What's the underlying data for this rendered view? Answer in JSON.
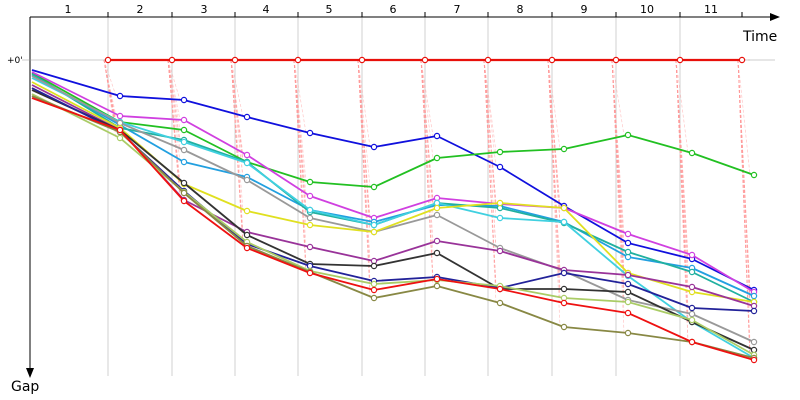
{
  "chart_data": {
    "type": "line",
    "xlabel": "Time",
    "ylabel": "Gap",
    "zero_label": "+0'",
    "laps": [
      "1",
      "2",
      "3",
      "4",
      "5",
      "6",
      "7",
      "8",
      "9",
      "10",
      "11"
    ],
    "x_ticks": [
      1,
      2,
      3,
      4,
      5,
      6,
      7,
      8,
      9,
      10,
      11
    ],
    "xlim": [
      0.5,
      12.2
    ],
    "ylim": [
      0,
      302
    ],
    "grid": "vertical",
    "leader_line_color": "#ff9999",
    "series": [
      {
        "color": "#e8100a",
        "points": [
          [
            1,
            0
          ],
          [
            2,
            0
          ],
          [
            3,
            0
          ],
          [
            4,
            0
          ],
          [
            5,
            0
          ],
          [
            6,
            0
          ],
          [
            7,
            0
          ],
          [
            8,
            0
          ],
          [
            9,
            0
          ],
          [
            10,
            0
          ],
          [
            11,
            0
          ]
        ]
      },
      {
        "color": "#1010dd",
        "points": [
          [
            0.5,
            10
          ],
          [
            1,
            36
          ],
          [
            2,
            40
          ],
          [
            3,
            57
          ],
          [
            4,
            73
          ],
          [
            5,
            87
          ],
          [
            6,
            76
          ],
          [
            7,
            107
          ],
          [
            8,
            146
          ],
          [
            9,
            183
          ],
          [
            10,
            199
          ],
          [
            11,
            230
          ]
        ]
      },
      {
        "color": "#22c022",
        "points": [
          [
            0.5,
            13
          ],
          [
            1,
            62
          ],
          [
            2,
            70
          ],
          [
            3,
            102
          ],
          [
            4,
            122
          ],
          [
            5,
            127
          ],
          [
            6,
            98
          ],
          [
            7,
            92
          ],
          [
            8,
            89
          ],
          [
            9,
            75
          ],
          [
            10,
            93
          ],
          [
            11,
            115
          ]
        ]
      },
      {
        "color": "#d040e0",
        "points": [
          [
            0.5,
            12
          ],
          [
            1,
            56
          ],
          [
            2,
            60
          ],
          [
            3,
            95
          ],
          [
            4,
            136
          ],
          [
            5,
            158
          ],
          [
            6,
            138
          ],
          [
            7,
            144
          ],
          [
            8,
            148
          ],
          [
            9,
            174
          ],
          [
            10,
            195
          ],
          [
            11,
            232
          ]
        ]
      },
      {
        "color": "#22a0e0",
        "points": [
          [
            0.5,
            15
          ],
          [
            1,
            65
          ],
          [
            2,
            102
          ],
          [
            3,
            117
          ],
          [
            4,
            150
          ],
          [
            5,
            162
          ],
          [
            6,
            145
          ],
          [
            7,
            146
          ],
          [
            8,
            162
          ],
          [
            9,
            197
          ],
          [
            10,
            208
          ],
          [
            11,
            236
          ]
        ]
      },
      {
        "color": "#20b0a0",
        "points": [
          [
            0.5,
            14
          ],
          [
            1,
            68
          ],
          [
            2,
            80
          ],
          [
            3,
            102
          ],
          [
            4,
            152
          ],
          [
            5,
            165
          ],
          [
            6,
            143
          ],
          [
            7,
            148
          ],
          [
            8,
            163
          ],
          [
            9,
            192
          ],
          [
            10,
            212
          ],
          [
            11,
            242
          ]
        ]
      },
      {
        "color": "#40d0e0",
        "points": [
          [
            0.5,
            18
          ],
          [
            1,
            62
          ],
          [
            2,
            82
          ],
          [
            3,
            103
          ],
          [
            4,
            150
          ],
          [
            5,
            165
          ],
          [
            6,
            143
          ],
          [
            7,
            158
          ],
          [
            8,
            162
          ],
          [
            9,
            216
          ],
          [
            10,
            262
          ],
          [
            11,
            298
          ]
        ]
      },
      {
        "color": "#999999",
        "points": [
          [
            0.5,
            16
          ],
          [
            1,
            63
          ],
          [
            2,
            90
          ],
          [
            3,
            120
          ],
          [
            4,
            158
          ],
          [
            5,
            172
          ],
          [
            6,
            155
          ],
          [
            7,
            188
          ],
          [
            8,
            211
          ],
          [
            9,
            240
          ],
          [
            10,
            254
          ],
          [
            11,
            282
          ]
        ]
      },
      {
        "color": "#e0e020",
        "points": [
          [
            0.5,
            22
          ],
          [
            1,
            68
          ],
          [
            2,
            124
          ],
          [
            3,
            151
          ],
          [
            4,
            165
          ],
          [
            5,
            172
          ],
          [
            6,
            148
          ],
          [
            7,
            143
          ],
          [
            8,
            148
          ],
          [
            9,
            213
          ],
          [
            10,
            232
          ],
          [
            11,
            242
          ]
        ]
      },
      {
        "color": "#993399",
        "points": [
          [
            0.5,
            25
          ],
          [
            1,
            70
          ],
          [
            2,
            140
          ],
          [
            3,
            172
          ],
          [
            4,
            187
          ],
          [
            5,
            201
          ],
          [
            6,
            181
          ],
          [
            7,
            191
          ],
          [
            8,
            210
          ],
          [
            9,
            215
          ],
          [
            10,
            227
          ],
          [
            11,
            246
          ]
        ]
      },
      {
        "color": "#333333",
        "points": [
          [
            0.5,
            30
          ],
          [
            1,
            70
          ],
          [
            2,
            123
          ],
          [
            3,
            175
          ],
          [
            4,
            204
          ],
          [
            5,
            206
          ],
          [
            6,
            193
          ],
          [
            7,
            229
          ],
          [
            8,
            229
          ],
          [
            9,
            232
          ],
          [
            10,
            262
          ],
          [
            11,
            290
          ]
        ]
      },
      {
        "color": "#222299",
        "points": [
          [
            0.5,
            28
          ],
          [
            1,
            72
          ],
          [
            2,
            131
          ],
          [
            3,
            184
          ],
          [
            4,
            206
          ],
          [
            5,
            221
          ],
          [
            6,
            217
          ],
          [
            7,
            228
          ],
          [
            8,
            213
          ],
          [
            9,
            224
          ],
          [
            10,
            248
          ],
          [
            11,
            251
          ]
        ]
      },
      {
        "color": "#aacc66",
        "points": [
          [
            0.5,
            34
          ],
          [
            1,
            78
          ],
          [
            2,
            132
          ],
          [
            3,
            182
          ],
          [
            4,
            211
          ],
          [
            5,
            224
          ],
          [
            6,
            220
          ],
          [
            7,
            226
          ],
          [
            8,
            238
          ],
          [
            9,
            242
          ],
          [
            10,
            260
          ],
          [
            11,
            295
          ]
        ]
      },
      {
        "color": "#888844",
        "points": [
          [
            0.5,
            36
          ],
          [
            1,
            72
          ],
          [
            2,
            133
          ],
          [
            3,
            186
          ],
          [
            4,
            212
          ],
          [
            5,
            238
          ],
          [
            6,
            226
          ],
          [
            7,
            243
          ],
          [
            8,
            267
          ],
          [
            9,
            273
          ],
          [
            10,
            282
          ],
          [
            11,
            298
          ]
        ]
      },
      {
        "color": "#ee1111",
        "points": [
          [
            0.5,
            38
          ],
          [
            1,
            70
          ],
          [
            2,
            141
          ],
          [
            3,
            188
          ],
          [
            4,
            213
          ],
          [
            5,
            230
          ],
          [
            6,
            219
          ],
          [
            7,
            229
          ],
          [
            8,
            243
          ],
          [
            9,
            253
          ],
          [
            10,
            282
          ],
          [
            11,
            300
          ]
        ]
      }
    ]
  }
}
